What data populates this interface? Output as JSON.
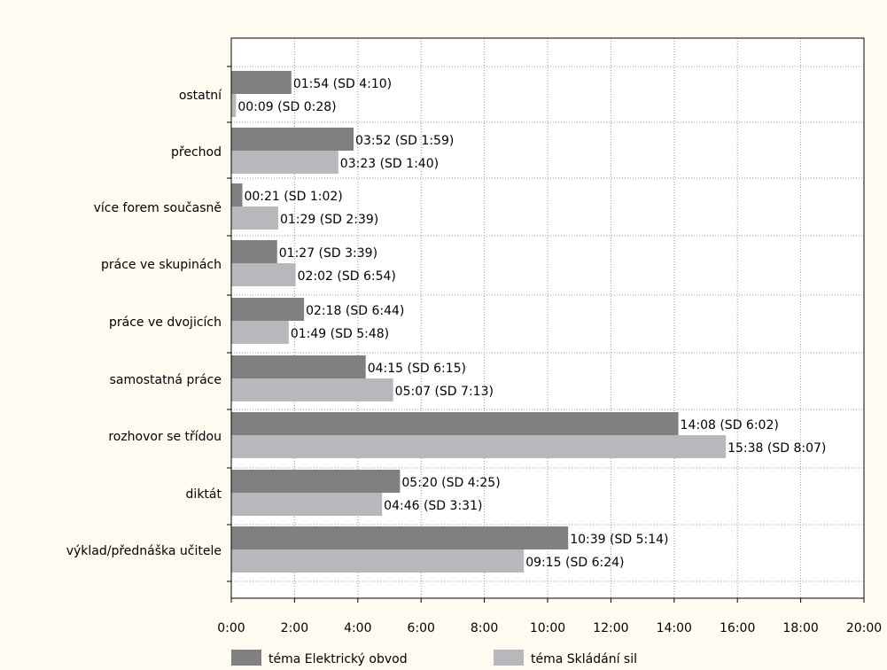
{
  "chart_data": {
    "type": "bar",
    "orientation": "horizontal",
    "categories": [
      "ostatní",
      "přechod",
      "více forem současně",
      "práce ve skupinách",
      "práce ve dvojicích",
      "samostatná práce",
      "rozhovor se třídou",
      "diktát",
      "výklad/přednáška učitele"
    ],
    "series": [
      {
        "name": "téma Elektrický obvod",
        "color": "#808080",
        "values_seconds": [
          114,
          232,
          21,
          87,
          138,
          255,
          848,
          320,
          639
        ],
        "labels": [
          "01:54 (SD 4:10)",
          "03:52 (SD 1:59)",
          "00:21 (SD 1:02)",
          "01:27 (SD 3:39)",
          "02:18 (SD 6:44)",
          "04:15 (SD 6:15)",
          "14:08 (SD 6:02)",
          "05:20 (SD 4:25)",
          "10:39 (SD 5:14)"
        ]
      },
      {
        "name": "téma Skládání sil",
        "color": "#b8b8bc",
        "values_seconds": [
          9,
          203,
          89,
          122,
          109,
          307,
          938,
          286,
          555
        ],
        "labels": [
          "00:09 (SD 0:28)",
          "03:23 (SD 1:40)",
          "01:29 (SD 2:39)",
          "02:02 (SD 6:54)",
          "01:49 (SD 5:48)",
          "05:07 (SD 7:13)",
          "15:38 (SD 8:07)",
          "04:46 (SD 3:31)",
          "09:15 (SD 6:24)"
        ]
      }
    ],
    "x_ticks_seconds": [
      0,
      120,
      240,
      360,
      480,
      600,
      720,
      840,
      960,
      1080,
      1200
    ],
    "x_tick_labels": [
      "0:00",
      "2:00",
      "4:00",
      "6:00",
      "8:00",
      "10:00",
      "12:00",
      "14:00",
      "16:00",
      "18:00",
      "20:00"
    ],
    "xlim_seconds": [
      0,
      1200
    ],
    "grid": true,
    "legend_position": "bottom"
  }
}
